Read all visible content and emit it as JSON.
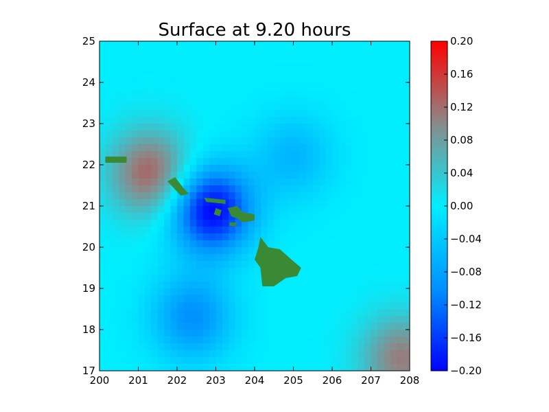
{
  "chart_data": {
    "type": "heatmap",
    "title": "Surface at 9.20 hours",
    "xlabel": "",
    "ylabel": "",
    "xlim": [
      200,
      208
    ],
    "ylim": [
      17,
      25
    ],
    "x_ticks": [
      "200",
      "201",
      "202",
      "203",
      "204",
      "205",
      "206",
      "207",
      "208"
    ],
    "y_ticks": [
      "17",
      "18",
      "19",
      "20",
      "21",
      "22",
      "23",
      "24",
      "25"
    ],
    "grid": false,
    "colorbar": {
      "min": -0.2,
      "max": 0.2,
      "ticks": [
        "0.20",
        "0.16",
        "0.12",
        "0.08",
        "0.04",
        "0.00",
        "−0.04",
        "−0.08",
        "−0.12",
        "−0.16",
        "−0.20"
      ],
      "colors": {
        "-0.2": "#0000ff",
        "-0.1": "#0091ff",
        "0.0": "#00eeff",
        "0.1": "#8a8a8a",
        "0.2": "#ff0000"
      }
    },
    "land_color": "#3a8a35",
    "features": [
      {
        "type": "anomaly",
        "name": "Kauai-region high",
        "x": 201.3,
        "y": 21.8,
        "value": 0.13
      },
      {
        "type": "anomaly",
        "name": "channel low",
        "x": 202.9,
        "y": 20.9,
        "value": -0.2
      },
      {
        "type": "anomaly",
        "name": "southwest low",
        "x": 202.4,
        "y": 18.3,
        "value": -0.1
      },
      {
        "type": "anomaly",
        "name": "northeast low",
        "x": 205.0,
        "y": 22.2,
        "value": -0.06
      },
      {
        "type": "anomaly",
        "name": "southeast high",
        "x": 207.8,
        "y": 17.3,
        "value": 0.11
      }
    ],
    "land": [
      {
        "name": "Niihau",
        "points": [
          [
            200.15,
            22.2
          ],
          [
            200.7,
            22.2
          ],
          [
            200.7,
            22.05
          ],
          [
            200.15,
            22.05
          ]
        ]
      },
      {
        "name": "Oahu",
        "points": [
          [
            201.75,
            21.6
          ],
          [
            201.95,
            21.7
          ],
          [
            202.15,
            21.45
          ],
          [
            202.3,
            21.3
          ],
          [
            202.1,
            21.25
          ],
          [
            201.9,
            21.45
          ]
        ]
      },
      {
        "name": "Molokai",
        "points": [
          [
            202.7,
            21.2
          ],
          [
            203.25,
            21.15
          ],
          [
            203.25,
            21.05
          ],
          [
            202.75,
            21.1
          ]
        ]
      },
      {
        "name": "Lanai",
        "points": [
          [
            203.0,
            20.95
          ],
          [
            203.15,
            20.9
          ],
          [
            203.1,
            20.75
          ],
          [
            202.95,
            20.8
          ]
        ]
      },
      {
        "name": "Kahoolawe",
        "points": [
          [
            203.35,
            20.6
          ],
          [
            203.55,
            20.6
          ],
          [
            203.5,
            20.5
          ],
          [
            203.35,
            20.52
          ]
        ]
      },
      {
        "name": "Maui",
        "points": [
          [
            203.3,
            20.95
          ],
          [
            203.55,
            21.0
          ],
          [
            203.7,
            20.85
          ],
          [
            204.0,
            20.8
          ],
          [
            204.0,
            20.65
          ],
          [
            203.7,
            20.6
          ],
          [
            203.55,
            20.7
          ],
          [
            203.4,
            20.75
          ]
        ]
      },
      {
        "name": "Hawaii",
        "points": [
          [
            204.15,
            20.25
          ],
          [
            204.35,
            20.0
          ],
          [
            204.65,
            19.95
          ],
          [
            204.95,
            19.7
          ],
          [
            205.2,
            19.5
          ],
          [
            205.1,
            19.3
          ],
          [
            204.8,
            19.25
          ],
          [
            204.5,
            19.05
          ],
          [
            204.2,
            19.05
          ],
          [
            204.15,
            19.5
          ],
          [
            204.0,
            19.7
          ],
          [
            204.1,
            20.0
          ]
        ]
      }
    ]
  }
}
